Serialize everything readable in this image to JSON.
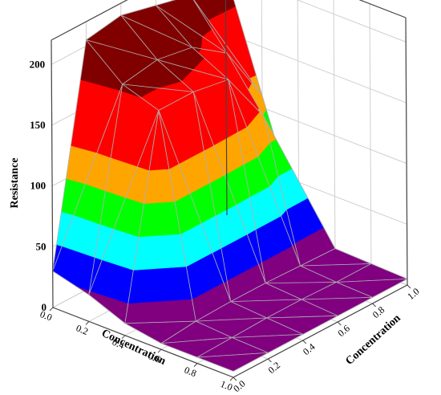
{
  "chart_data": {
    "type": "surface",
    "xlabel": "Concentration",
    "ylabel": "Concentration",
    "zlabel": "Resistance",
    "xlim": [
      0,
      1
    ],
    "ylim": [
      0,
      1
    ],
    "zlim": [
      0,
      220
    ],
    "xticks": [
      "0.0",
      "0.2",
      "0.4",
      "0.6",
      "0.8",
      "1.0"
    ],
    "yticks": [
      "0.0",
      "0.2",
      "0.4",
      "0.6",
      "0.8",
      "1.0"
    ],
    "zticks": [
      "0",
      "50",
      "100",
      "150",
      "200"
    ],
    "grid": true,
    "x": [
      0,
      0.2,
      0.4,
      0.6,
      0.8,
      1.0
    ],
    "y": [
      0,
      0.2,
      0.4,
      0.6,
      0.8,
      1.0
    ],
    "z": [
      [
        30,
        205,
        210,
        203,
        196,
        200
      ],
      [
        22,
        180,
        185,
        180,
        160,
        110
      ],
      [
        10,
        170,
        170,
        165,
        120,
        20
      ],
      [
        5,
        8,
        9,
        9,
        8,
        7
      ],
      [
        5,
        6,
        7,
        7,
        6,
        6
      ],
      [
        5,
        5,
        5,
        5,
        5,
        5
      ]
    ],
    "colormap": [
      {
        "z": 0,
        "color": "#800080"
      },
      {
        "z": 25,
        "color": "#0000ff"
      },
      {
        "z": 50,
        "color": "#00ffff"
      },
      {
        "z": 75,
        "color": "#00ff00"
      },
      {
        "z": 100,
        "color": "#ffa500"
      },
      {
        "z": 125,
        "color": "#ff0000"
      },
      {
        "z": 175,
        "color": "#800000"
      }
    ],
    "mesh_color": "#b0b0b0"
  }
}
